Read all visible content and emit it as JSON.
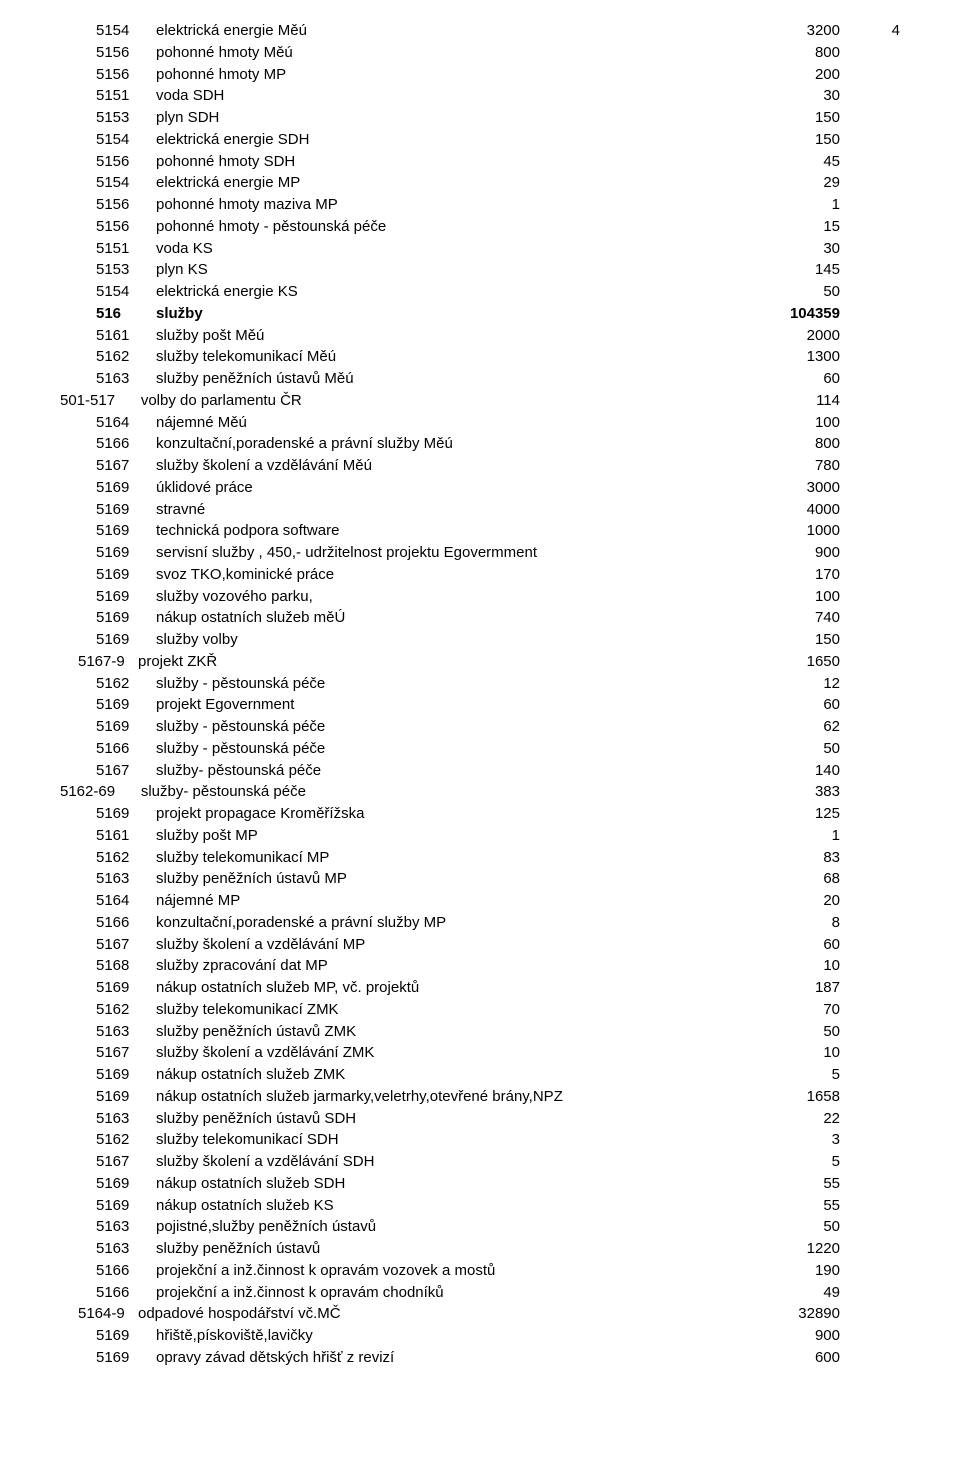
{
  "rows": [
    {
      "indent": 2,
      "bold": false,
      "code": "5154",
      "label": "elektrická energie Měú",
      "v1": "3200",
      "v2": "4"
    },
    {
      "indent": 2,
      "bold": false,
      "code": "5156",
      "label": "pohonné hmoty Měú",
      "v1": "800",
      "v2": ""
    },
    {
      "indent": 2,
      "bold": false,
      "code": "5156",
      "label": "pohonné hmoty MP",
      "v1": "200",
      "v2": ""
    },
    {
      "indent": 2,
      "bold": false,
      "code": "5151",
      "label": "voda SDH",
      "v1": "30",
      "v2": ""
    },
    {
      "indent": 2,
      "bold": false,
      "code": "5153",
      "label": "plyn SDH",
      "v1": "150",
      "v2": ""
    },
    {
      "indent": 2,
      "bold": false,
      "code": "5154",
      "label": "elektrická energie SDH",
      "v1": "150",
      "v2": ""
    },
    {
      "indent": 2,
      "bold": false,
      "code": "5156",
      "label": "pohonné hmoty SDH",
      "v1": "45",
      "v2": ""
    },
    {
      "indent": 2,
      "bold": false,
      "code": "5154",
      "label": "elektrická energie MP",
      "v1": "29",
      "v2": ""
    },
    {
      "indent": 2,
      "bold": false,
      "code": "5156",
      "label": "pohonné hmoty maziva MP",
      "v1": "1",
      "v2": ""
    },
    {
      "indent": 2,
      "bold": false,
      "code": "5156",
      "label": "pohonné hmoty - pěstounská péče",
      "v1": "15",
      "v2": ""
    },
    {
      "indent": 2,
      "bold": false,
      "code": "5151",
      "label": "voda KS",
      "v1": "30",
      "v2": ""
    },
    {
      "indent": 2,
      "bold": false,
      "code": "5153",
      "label": "plyn KS",
      "v1": "145",
      "v2": ""
    },
    {
      "indent": 2,
      "bold": false,
      "code": "5154",
      "label": "elektrická energie KS",
      "v1": "50",
      "v2": ""
    },
    {
      "indent": 2,
      "bold": false,
      "code": "",
      "label": "",
      "v1": "",
      "v2": ""
    },
    {
      "indent": 2,
      "bold": true,
      "code": "516",
      "label": "služby",
      "v1": "104359",
      "v2": ""
    },
    {
      "indent": 2,
      "bold": false,
      "code": "5161",
      "label": "služby pošt Měú",
      "v1": "2000",
      "v2": ""
    },
    {
      "indent": 2,
      "bold": false,
      "code": "5162",
      "label": "služby telekomunikací Měú",
      "v1": "1300",
      "v2": ""
    },
    {
      "indent": 2,
      "bold": false,
      "code": "5163",
      "label": "služby peněžních ústavů Měú",
      "v1": "60",
      "v2": ""
    },
    {
      "indent": 0,
      "bold": false,
      "code": "501-517",
      "label": "     volby do parlamentu ČR",
      "v1": "114",
      "v2": ""
    },
    {
      "indent": 2,
      "bold": false,
      "code": "5164",
      "label": "nájemné Měú",
      "v1": "100",
      "v2": ""
    },
    {
      "indent": 2,
      "bold": false,
      "code": "5166",
      "label": "konzultační,poradenské a právní služby Měú",
      "v1": "800",
      "v2": ""
    },
    {
      "indent": 2,
      "bold": false,
      "code": "5167",
      "label": "služby školení a vzdělávání Měú",
      "v1": "780",
      "v2": ""
    },
    {
      "indent": 2,
      "bold": false,
      "code": "5169",
      "label": "úklidové práce",
      "v1": "3000",
      "v2": ""
    },
    {
      "indent": 2,
      "bold": false,
      "code": "5169",
      "label": "stravné",
      "v1": "4000",
      "v2": ""
    },
    {
      "indent": 2,
      "bold": false,
      "code": "5169",
      "label": "technická podpora software",
      "v1": "1000",
      "v2": ""
    },
    {
      "indent": 2,
      "bold": false,
      "code": "5169",
      "label": "servisní služby , 450,- udržitelnost projektu Egovermment",
      "v1": "900",
      "v2": ""
    },
    {
      "indent": 2,
      "bold": false,
      "code": "5169",
      "label": "svoz TKO,kominické práce",
      "v1": "170",
      "v2": ""
    },
    {
      "indent": 2,
      "bold": false,
      "code": "5169",
      "label": "služby vozového parku,",
      "v1": "100",
      "v2": ""
    },
    {
      "indent": 2,
      "bold": false,
      "code": "5169",
      "label": "nákup ostatních služeb měÚ",
      "v1": "740",
      "v2": ""
    },
    {
      "indent": 2,
      "bold": false,
      "code": "5169",
      "label": "služby volby",
      "v1": "150",
      "v2": ""
    },
    {
      "indent": 1,
      "bold": false,
      "code": "5167-9",
      "label": "projekt ZKŘ",
      "v1": "1650",
      "v2": ""
    },
    {
      "indent": 2,
      "bold": false,
      "code": "5162",
      "label": "služby - pěstounská péče",
      "v1": "12",
      "v2": ""
    },
    {
      "indent": 2,
      "bold": false,
      "code": "5169",
      "label": "projekt Egovernment",
      "v1": "60",
      "v2": ""
    },
    {
      "indent": 2,
      "bold": false,
      "code": "5169",
      "label": "služby - pěstounská péče",
      "v1": "62",
      "v2": ""
    },
    {
      "indent": 2,
      "bold": false,
      "code": "5166",
      "label": "služby - pěstounská péče",
      "v1": "50",
      "v2": ""
    },
    {
      "indent": 2,
      "bold": false,
      "code": "5167",
      "label": "služby- pěstounská péče",
      "v1": "140",
      "v2": ""
    },
    {
      "indent": 0,
      "bold": false,
      "code": "5162-69",
      "label": "     služby- pěstounská péče",
      "v1": "383",
      "v2": ""
    },
    {
      "indent": 2,
      "bold": false,
      "code": "5169",
      "label": "projekt propagace Kroměřížska",
      "v1": "125",
      "v2": ""
    },
    {
      "indent": 2,
      "bold": false,
      "code": "5161",
      "label": "služby pošt MP",
      "v1": "1",
      "v2": ""
    },
    {
      "indent": 2,
      "bold": false,
      "code": "5162",
      "label": "služby telekomunikací MP",
      "v1": "83",
      "v2": ""
    },
    {
      "indent": 2,
      "bold": false,
      "code": "5163",
      "label": "služby peněžních ústavů MP",
      "v1": "68",
      "v2": ""
    },
    {
      "indent": 2,
      "bold": false,
      "code": "5164",
      "label": "nájemné MP",
      "v1": "20",
      "v2": ""
    },
    {
      "indent": 2,
      "bold": false,
      "code": "5166",
      "label": "konzultační,poradenské a právní služby MP",
      "v1": "8",
      "v2": ""
    },
    {
      "indent": 2,
      "bold": false,
      "code": "5167",
      "label": "služby školení a vzdělávání MP",
      "v1": "60",
      "v2": ""
    },
    {
      "indent": 2,
      "bold": false,
      "code": "5168",
      "label": "služby zpracování dat MP",
      "v1": "10",
      "v2": ""
    },
    {
      "indent": 2,
      "bold": false,
      "code": "5169",
      "label": "nákup ostatních služeb MP, vč. projektů",
      "v1": "187",
      "v2": ""
    },
    {
      "indent": 2,
      "bold": false,
      "code": "5162",
      "label": "služby telekomunikací ZMK",
      "v1": "70",
      "v2": ""
    },
    {
      "indent": 2,
      "bold": false,
      "code": "5163",
      "label": "služby peněžních ústavů ZMK",
      "v1": "50",
      "v2": ""
    },
    {
      "indent": 2,
      "bold": false,
      "code": "5167",
      "label": "služby školení a vzdělávání ZMK",
      "v1": "10",
      "v2": ""
    },
    {
      "indent": 2,
      "bold": false,
      "code": "5169",
      "label": "nákup ostatních služeb ZMK",
      "v1": "5",
      "v2": ""
    },
    {
      "indent": 2,
      "bold": false,
      "code": "5169",
      "label": "nákup ostatních služeb jarmarky,veletrhy,otevřené brány,NPZ",
      "v1": "1658",
      "v2": ""
    },
    {
      "indent": 2,
      "bold": false,
      "code": "5163",
      "label": "služby peněžních ústavů SDH",
      "v1": "22",
      "v2": ""
    },
    {
      "indent": 2,
      "bold": false,
      "code": "5162",
      "label": "služby telekomunikací SDH",
      "v1": "3",
      "v2": ""
    },
    {
      "indent": 2,
      "bold": false,
      "code": "5167",
      "label": "služby školení a vzdělávání SDH",
      "v1": "5",
      "v2": ""
    },
    {
      "indent": 2,
      "bold": false,
      "code": "5169",
      "label": "nákup ostatních služeb SDH",
      "v1": "55",
      "v2": ""
    },
    {
      "indent": 2,
      "bold": false,
      "code": "5169",
      "label": "nákup ostatních služeb KS",
      "v1": "55",
      "v2": ""
    },
    {
      "indent": 2,
      "bold": false,
      "code": "5163",
      "label": "pojistné,služby peněžních ústavů",
      "v1": "50",
      "v2": ""
    },
    {
      "indent": 2,
      "bold": false,
      "code": "5163",
      "label": "služby peněžních ústavů",
      "v1": "1220",
      "v2": ""
    },
    {
      "indent": 2,
      "bold": false,
      "code": "5166",
      "label": "projekční a inž.činnost k opravám vozovek a mostů",
      "v1": "190",
      "v2": ""
    },
    {
      "indent": 2,
      "bold": false,
      "code": "5166",
      "label": "projekční a inž.činnost k opravám chodníků",
      "v1": "49",
      "v2": ""
    },
    {
      "indent": 1,
      "bold": false,
      "code": "5164-9",
      "label": "odpadové hospodářství vč.MČ",
      "v1": "32890",
      "v2": ""
    },
    {
      "indent": 2,
      "bold": false,
      "code": "5169",
      "label": "hřiště,pískoviště,lavičky",
      "v1": "900",
      "v2": ""
    },
    {
      "indent": 2,
      "bold": false,
      "code": "5169",
      "label": "opravy závad dětských hřišť z revizí",
      "v1": "600",
      "v2": ""
    }
  ]
}
